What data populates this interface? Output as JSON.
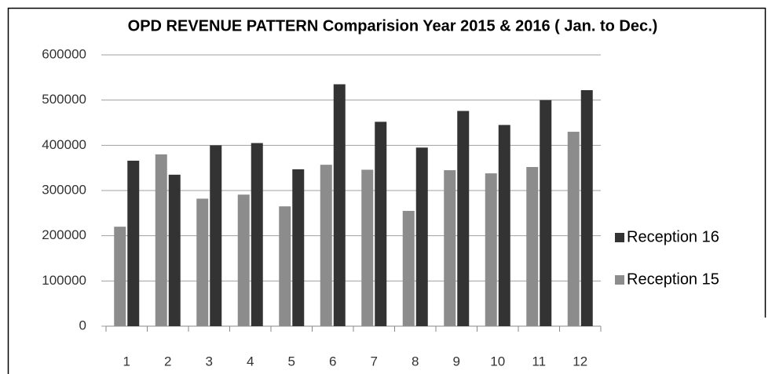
{
  "chart_data": {
    "type": "bar",
    "title": "OPD REVENUE PATTERN Comparision Year 2015 & 2016 ( Jan. to Dec.)",
    "categories": [
      "1",
      "2",
      "3",
      "4",
      "5",
      "6",
      "7",
      "8",
      "9",
      "10",
      "11",
      "12"
    ],
    "series": [
      {
        "name": "Reception 15",
        "color": "#8c8c8c",
        "values": [
          220000,
          380000,
          282000,
          291000,
          265000,
          357000,
          346000,
          255000,
          345000,
          338000,
          352000,
          430000
        ]
      },
      {
        "name": "Reception 16",
        "color": "#333333",
        "values": [
          366000,
          335000,
          400000,
          405000,
          347000,
          535000,
          452000,
          395000,
          476000,
          445000,
          500000,
          522000
        ]
      }
    ],
    "ylim": [
      0,
      600000
    ],
    "yticks": [
      0,
      100000,
      200000,
      300000,
      400000,
      500000,
      600000
    ],
    "grid": true,
    "legend": "right"
  }
}
